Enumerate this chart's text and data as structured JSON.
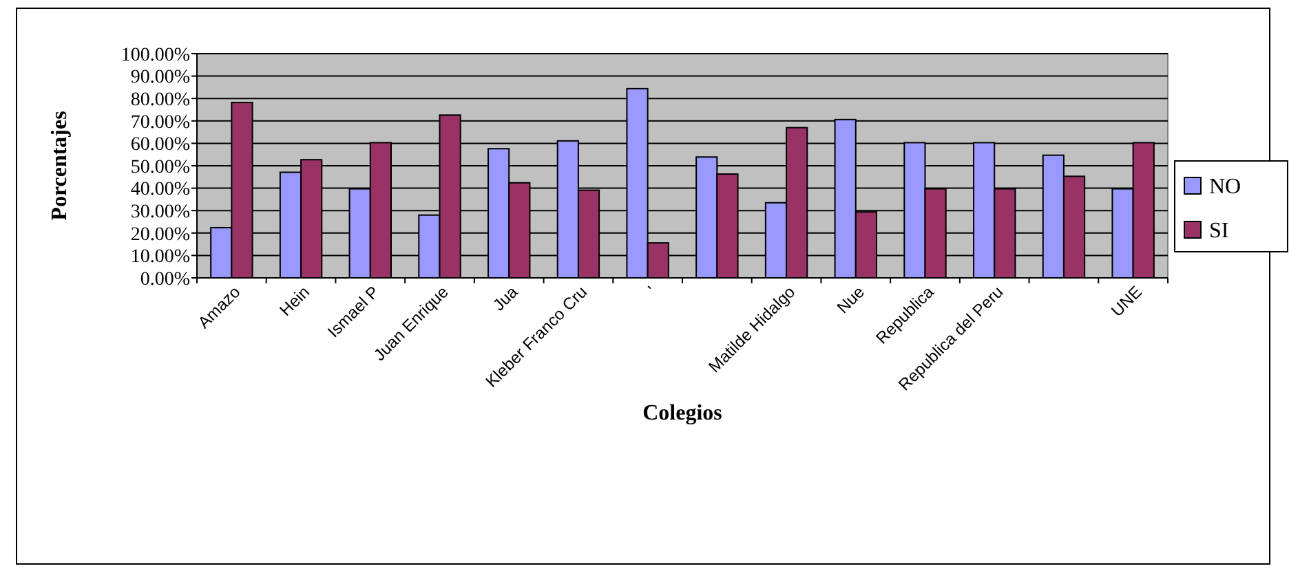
{
  "chart_data": {
    "type": "bar",
    "xlabel": "Colegios",
    "ylabel": "Porcentajes",
    "categories": [
      "Amazo",
      "Hein",
      "Ismael P",
      "Juan Enrique",
      "Jua",
      "Kleber Franco Cru",
      "'",
      null,
      "Matilde Hidalgo",
      "Nue",
      "Republica",
      "Republica del Peru",
      null,
      "UNE"
    ],
    "series": [
      {
        "name": "NO",
        "color": "#9999ff",
        "values": [
          22.4,
          47.1,
          39.7,
          28,
          57.6,
          61.1,
          84.4,
          53.9,
          33.5,
          70.6,
          60.3,
          60.3,
          54.7,
          39.7
        ]
      },
      {
        "name": "SI",
        "color": "#993366",
        "values": [
          78.2,
          52.7,
          60.3,
          72.6,
          42.4,
          39.1,
          15.6,
          46.3,
          67,
          29.4,
          39.7,
          39.7,
          45.3,
          60.3
        ]
      }
    ],
    "ylim": [
      0,
      100
    ],
    "yticks": [
      {
        "value": 0,
        "label": "0.00%"
      },
      {
        "value": 10,
        "label": "10.00%"
      },
      {
        "value": 20,
        "label": "20.00%"
      },
      {
        "value": 30,
        "label": "30.00%"
      },
      {
        "value": 40,
        "label": "40.00%"
      },
      {
        "value": 50,
        "label": "50.00%"
      },
      {
        "value": 60,
        "label": "60.00%"
      },
      {
        "value": 70,
        "label": "70.00%"
      },
      {
        "value": 80,
        "label": "80.00%"
      },
      {
        "value": 90,
        "label": "90.00%"
      },
      {
        "value": 100,
        "label": "100.00%"
      }
    ],
    "grid": "y",
    "legend": "right"
  }
}
